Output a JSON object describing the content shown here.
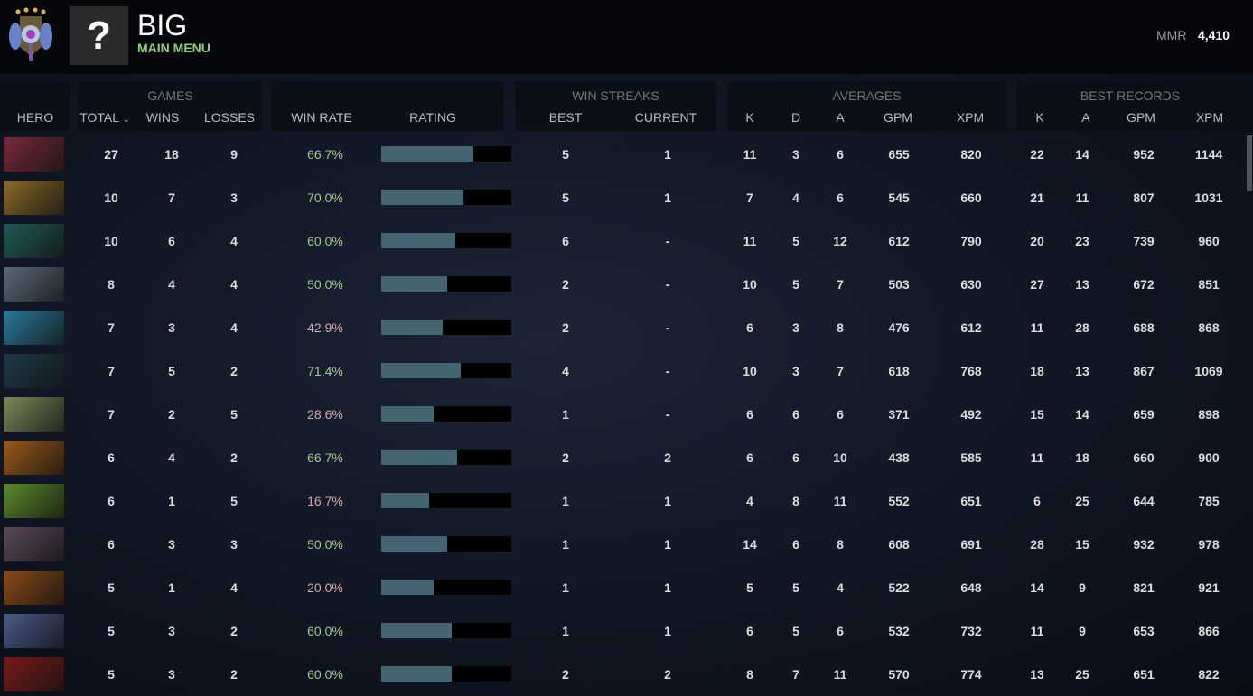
{
  "header": {
    "player_name": "BIG",
    "subtitle": "MAIN MENU",
    "avatar_glyph": "?",
    "mmr_label": "MMR",
    "mmr_value": "4,410",
    "rank_icon": "ancient-rank-medal-4-stars"
  },
  "groups": {
    "games": "GAMES",
    "win_streaks": "WIN STREAKS",
    "averages": "AVERAGES",
    "best_records": "BEST RECORDS"
  },
  "columns": {
    "hero": "HERO",
    "total": "TOTAL",
    "wins": "WINS",
    "losses": "LOSSES",
    "win_rate": "WIN RATE",
    "rating": "RATING",
    "best": "BEST",
    "current": "CURRENT",
    "k": "K",
    "d": "D",
    "a": "A",
    "gpm": "GPM",
    "xpm": "XPM",
    "bk": "K",
    "ba": "A",
    "bgpm": "GPM",
    "bxpm": "XPM"
  },
  "colors": {
    "win_good": "#9ccc8a",
    "win_bad": "#dca8a0",
    "rating_fill": "#456472",
    "accent": "#8fcf7a"
  },
  "rows": [
    {
      "hero_color": "#7a2a3a",
      "total": "27",
      "wins": "18",
      "losses": "9",
      "win_rate": "66.7%",
      "rating": 0.71,
      "best": "5",
      "current": "1",
      "k": "11",
      "d": "3",
      "a": "6",
      "gpm": "655",
      "xpm": "820",
      "bk": "22",
      "ba": "14",
      "bgpm": "952",
      "bxpm": "1144"
    },
    {
      "hero_color": "#8a6a2a",
      "total": "10",
      "wins": "7",
      "losses": "3",
      "win_rate": "70.0%",
      "rating": 0.63,
      "best": "5",
      "current": "1",
      "k": "7",
      "d": "4",
      "a": "6",
      "gpm": "545",
      "xpm": "660",
      "bk": "21",
      "ba": "11",
      "bgpm": "807",
      "bxpm": "1031"
    },
    {
      "hero_color": "#1f5a55",
      "total": "10",
      "wins": "6",
      "losses": "4",
      "win_rate": "60.0%",
      "rating": 0.57,
      "best": "6",
      "current": "-",
      "k": "11",
      "d": "5",
      "a": "12",
      "gpm": "612",
      "xpm": "790",
      "bk": "20",
      "ba": "23",
      "bgpm": "739",
      "bxpm": "960"
    },
    {
      "hero_color": "#5a6a7a",
      "total": "8",
      "wins": "4",
      "losses": "4",
      "win_rate": "50.0%",
      "rating": 0.51,
      "best": "2",
      "current": "-",
      "k": "10",
      "d": "5",
      "a": "7",
      "gpm": "503",
      "xpm": "630",
      "bk": "27",
      "ba": "13",
      "bgpm": "672",
      "bxpm": "851"
    },
    {
      "hero_color": "#2a7a9a",
      "total": "7",
      "wins": "3",
      "losses": "4",
      "win_rate": "42.9%",
      "rating": 0.47,
      "best": "2",
      "current": "-",
      "k": "6",
      "d": "3",
      "a": "8",
      "gpm": "476",
      "xpm": "612",
      "bk": "11",
      "ba": "28",
      "bgpm": "688",
      "bxpm": "868"
    },
    {
      "hero_color": "#1f3a4a",
      "total": "7",
      "wins": "5",
      "losses": "2",
      "win_rate": "71.4%",
      "rating": 0.61,
      "best": "4",
      "current": "-",
      "k": "10",
      "d": "3",
      "a": "7",
      "gpm": "618",
      "xpm": "768",
      "bk": "18",
      "ba": "13",
      "bgpm": "867",
      "bxpm": "1069"
    },
    {
      "hero_color": "#7a8a5a",
      "total": "7",
      "wins": "2",
      "losses": "5",
      "win_rate": "28.6%",
      "rating": 0.4,
      "best": "1",
      "current": "-",
      "k": "6",
      "d": "6",
      "a": "6",
      "gpm": "371",
      "xpm": "492",
      "bk": "15",
      "ba": "14",
      "bgpm": "659",
      "bxpm": "898"
    },
    {
      "hero_color": "#9a5a1a",
      "total": "6",
      "wins": "4",
      "losses": "2",
      "win_rate": "66.7%",
      "rating": 0.58,
      "best": "2",
      "current": "2",
      "k": "6",
      "d": "6",
      "a": "10",
      "gpm": "438",
      "xpm": "585",
      "bk": "11",
      "ba": "18",
      "bgpm": "660",
      "bxpm": "900"
    },
    {
      "hero_color": "#5a8a2a",
      "total": "6",
      "wins": "1",
      "losses": "5",
      "win_rate": "16.7%",
      "rating": 0.37,
      "best": "1",
      "current": "1",
      "k": "4",
      "d": "8",
      "a": "11",
      "gpm": "552",
      "xpm": "651",
      "bk": "6",
      "ba": "25",
      "bgpm": "644",
      "bxpm": "785"
    },
    {
      "hero_color": "#5a4a5a",
      "total": "6",
      "wins": "3",
      "losses": "3",
      "win_rate": "50.0%",
      "rating": 0.51,
      "best": "1",
      "current": "1",
      "k": "14",
      "d": "6",
      "a": "8",
      "gpm": "608",
      "xpm": "691",
      "bk": "28",
      "ba": "15",
      "bgpm": "932",
      "bxpm": "978"
    },
    {
      "hero_color": "#8a4a1a",
      "total": "5",
      "wins": "1",
      "losses": "4",
      "win_rate": "20.0%",
      "rating": 0.4,
      "best": "1",
      "current": "1",
      "k": "5",
      "d": "5",
      "a": "4",
      "gpm": "522",
      "xpm": "648",
      "bk": "14",
      "ba": "9",
      "bgpm": "821",
      "bxpm": "921"
    },
    {
      "hero_color": "#4a5a8a",
      "total": "5",
      "wins": "3",
      "losses": "2",
      "win_rate": "60.0%",
      "rating": 0.54,
      "best": "1",
      "current": "1",
      "k": "6",
      "d": "5",
      "a": "6",
      "gpm": "532",
      "xpm": "732",
      "bk": "11",
      "ba": "9",
      "bgpm": "653",
      "bxpm": "866"
    },
    {
      "hero_color": "#7a1a1a",
      "total": "5",
      "wins": "3",
      "losses": "2",
      "win_rate": "60.0%",
      "rating": 0.54,
      "best": "2",
      "current": "2",
      "k": "8",
      "d": "7",
      "a": "11",
      "gpm": "570",
      "xpm": "774",
      "bk": "13",
      "ba": "25",
      "bgpm": "651",
      "bxpm": "822"
    }
  ]
}
